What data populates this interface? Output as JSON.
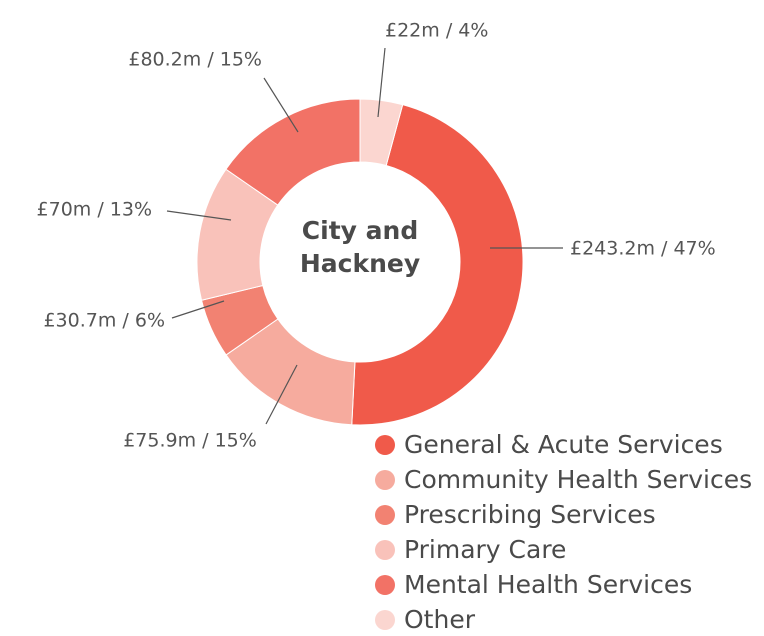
{
  "chart_data": {
    "type": "donut",
    "title": "City and Hackney",
    "categories": [
      "General & Acute Services",
      "Community Health Services",
      "Prescribing Services",
      "Primary Care",
      "Mental Health Services",
      "Other"
    ],
    "values": [
      243.2,
      75.9,
      30.7,
      70,
      80.2,
      22
    ],
    "value_labels": [
      "£243.2m / 47%",
      "£75.9m / 15%",
      "£30.7m / 6%",
      "£70m / 13%",
      "£80.2m / 15%",
      "£22m / 4%"
    ],
    "colors": [
      "#f05a4a",
      "#f6ab9e",
      "#f28272",
      "#f9c2ba",
      "#f27266",
      "#fbd6d0"
    ],
    "legend": "bottom-right"
  }
}
